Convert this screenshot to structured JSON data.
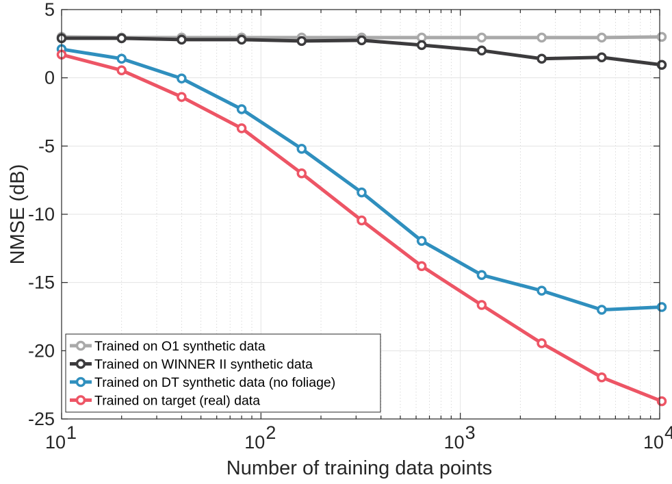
{
  "chart_data": {
    "type": "line",
    "xscale": "log",
    "xlim": [
      10,
      10000
    ],
    "ylim": [
      -25,
      5
    ],
    "xlabel": "Number of training data points",
    "ylabel": "NMSE (dB)",
    "grid": true,
    "legend_position": "bottom-left",
    "x": [
      10,
      20,
      40,
      80,
      160,
      320,
      640,
      1280,
      2560,
      5120,
      10240
    ],
    "x_ticks": [
      {
        "value": 10,
        "base": "10",
        "exp": "1"
      },
      {
        "value": 100,
        "base": "10",
        "exp": "2"
      },
      {
        "value": 1000,
        "base": "10",
        "exp": "3"
      },
      {
        "value": 10000,
        "base": "10",
        "exp": "4"
      }
    ],
    "y_ticks": [
      {
        "value": 5,
        "label": "5"
      },
      {
        "value": 0,
        "label": "0"
      },
      {
        "value": -5,
        "label": "-5"
      },
      {
        "value": -10,
        "label": "-10"
      },
      {
        "value": -15,
        "label": "-15"
      },
      {
        "value": -20,
        "label": "-20"
      },
      {
        "value": -25,
        "label": "-25"
      }
    ],
    "series": [
      {
        "name": "Trained on O1 synthetic data",
        "color": "#a9a9a9",
        "values": [
          3.0,
          2.95,
          2.95,
          2.95,
          2.95,
          2.95,
          2.95,
          2.95,
          2.95,
          2.95,
          3.0
        ]
      },
      {
        "name": "Trained on WINNER II synthetic data",
        "color": "#3c3b3d",
        "values": [
          2.9,
          2.9,
          2.8,
          2.8,
          2.7,
          2.75,
          2.4,
          2.0,
          1.4,
          1.5,
          0.95
        ]
      },
      {
        "name": "Trained on DT synthetic data (no foliage)",
        "color": "#2f8fbe",
        "values": [
          2.1,
          1.4,
          -0.05,
          -2.3,
          -5.2,
          -8.4,
          -11.95,
          -14.45,
          -15.6,
          -17.0,
          -16.8
        ]
      },
      {
        "name": "Trained on target (real) data",
        "color": "#ed5565",
        "values": [
          1.7,
          0.55,
          -1.4,
          -3.7,
          -7.0,
          -10.45,
          -13.8,
          -16.65,
          -19.45,
          -21.95,
          -23.7
        ]
      }
    ]
  }
}
